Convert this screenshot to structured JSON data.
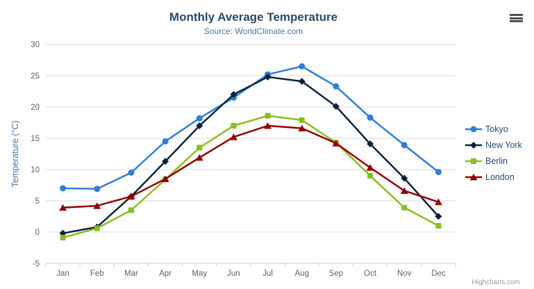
{
  "header": {
    "title": "Monthly Average Temperature",
    "subtitle": "Source: WorldClimate.com"
  },
  "credits_label": "Highcharts.com",
  "context_menu_icon": "hamburger-icon",
  "chart_data": {
    "type": "line",
    "title": "Monthly Average Temperature",
    "subtitle": "Source: WorldClimate.com",
    "xlabel": "",
    "ylabel": "Temperature (°C)",
    "ylim": [
      -5,
      30
    ],
    "ytick_step": 5,
    "grid": true,
    "legend_position": "right",
    "categories": [
      "Jan",
      "Feb",
      "Mar",
      "Apr",
      "May",
      "Jun",
      "Jul",
      "Aug",
      "Sep",
      "Oct",
      "Nov",
      "Dec"
    ],
    "series": [
      {
        "name": "Tokyo",
        "color": "#2f7ed8",
        "marker": "circle",
        "values": [
          7.0,
          6.9,
          9.5,
          14.5,
          18.2,
          21.5,
          25.2,
          26.5,
          23.3,
          18.3,
          13.9,
          9.6
        ]
      },
      {
        "name": "New York",
        "color": "#0d233a",
        "marker": "diamond",
        "values": [
          -0.2,
          0.8,
          5.7,
          11.3,
          17.0,
          22.0,
          24.8,
          24.1,
          20.1,
          14.1,
          8.6,
          2.5
        ]
      },
      {
        "name": "Berlin",
        "color": "#8bbc21",
        "marker": "square",
        "values": [
          -0.9,
          0.6,
          3.5,
          8.4,
          13.5,
          17.0,
          18.6,
          17.9,
          14.3,
          9.0,
          3.9,
          1.0
        ]
      },
      {
        "name": "London",
        "color": "#910000",
        "marker": "triangle",
        "values": [
          3.9,
          4.2,
          5.7,
          8.5,
          11.9,
          15.2,
          17.0,
          16.6,
          14.2,
          10.3,
          6.6,
          4.8
        ]
      }
    ],
    "axis_colors": {
      "grid": "#d8d8d8",
      "axis_line": "#c0d0e0",
      "tick_label": "#606060",
      "axis_title": "#4d759e"
    }
  }
}
